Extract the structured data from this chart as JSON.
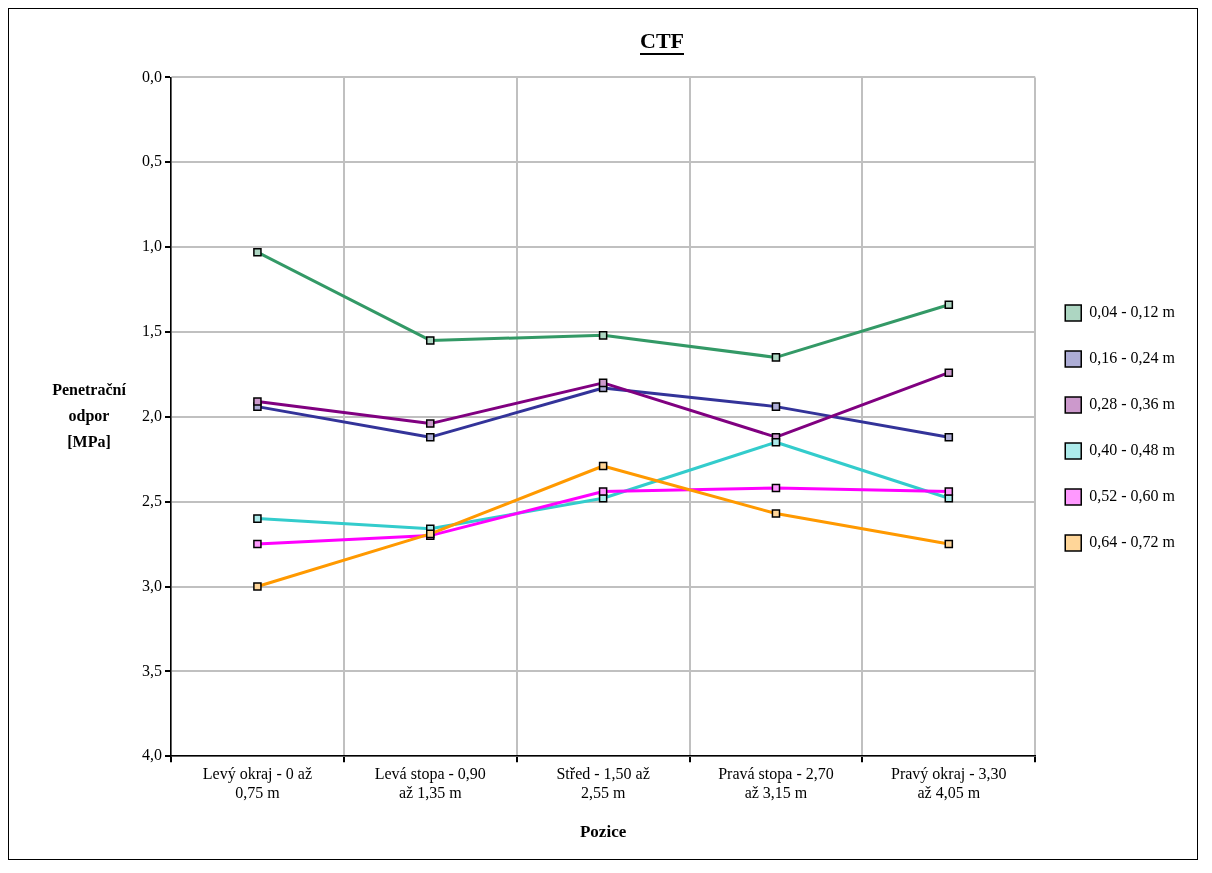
{
  "chart_data": {
    "type": "line",
    "title": "CTF",
    "xlabel": "Pozice",
    "ylabel": "Penetrační odpor [MPa]",
    "categories": [
      "Levý okraj - 0 až 0,75 m",
      "Levá stopa - 0,90 až 1,35 m",
      "Střed - 1,50 až 2,55 m",
      "Pravá stopa - 2,70 až 3,15 m",
      "Pravý okraj - 3,30 až 4,05 m"
    ],
    "series": [
      {
        "name": "0,04 - 0,12 m",
        "color": "#339966",
        "values": [
          1.03,
          1.55,
          1.52,
          1.65,
          1.34
        ]
      },
      {
        "name": "0,16 - 0,24 m",
        "color": "#333399",
        "values": [
          1.94,
          2.12,
          1.83,
          1.94,
          2.12
        ]
      },
      {
        "name": "0,28 - 0,36 m",
        "color": "#800080",
        "values": [
          1.91,
          2.04,
          1.8,
          2.12,
          1.74
        ]
      },
      {
        "name": "0,40 - 0,48 m",
        "color": "#33cccc",
        "values": [
          2.6,
          2.66,
          2.48,
          2.15,
          2.48
        ]
      },
      {
        "name": "0,52 - 0,60 m",
        "color": "#ff00ff",
        "values": [
          2.75,
          2.7,
          2.44,
          2.42,
          2.44
        ]
      },
      {
        "name": "0,64 - 0,72 m",
        "color": "#ff9900",
        "values": [
          3.0,
          2.69,
          2.29,
          2.57,
          2.75
        ]
      }
    ],
    "ylim": [
      4,
      0
    ],
    "yticks": [
      {
        "value": 0,
        "label": "0,0"
      },
      {
        "value": 0.5,
        "label": "0,5"
      },
      {
        "value": 1,
        "label": "1,0"
      },
      {
        "value": 1.5,
        "label": "1,5"
      },
      {
        "value": 2,
        "label": "2,0"
      },
      {
        "value": 2.5,
        "label": "2,5"
      },
      {
        "value": 3,
        "label": "3,0"
      },
      {
        "value": 3.5,
        "label": "3,5"
      },
      {
        "value": 4,
        "label": "4,0"
      }
    ],
    "grid": true,
    "legend": "right",
    "marker": "square",
    "line_style": "solid"
  }
}
